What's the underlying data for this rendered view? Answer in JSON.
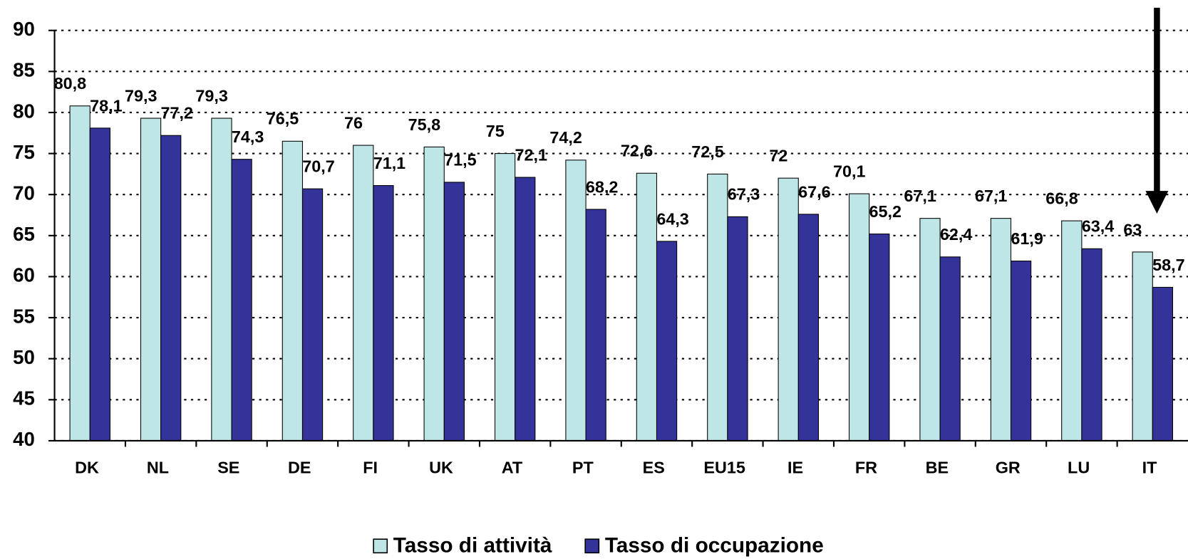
{
  "chart_data": {
    "type": "bar",
    "categories": [
      "DK",
      "NL",
      "SE",
      "DE",
      "FI",
      "UK",
      "AT",
      "PT",
      "ES",
      "EU15",
      "IE",
      "FR",
      "BE",
      "GR",
      "LU",
      "IT"
    ],
    "series": [
      {
        "name": "Tasso di attività",
        "color": "#bfe6e6",
        "values": [
          80.8,
          79.3,
          79.3,
          76.5,
          76,
          75.8,
          75,
          74.2,
          72.6,
          72.5,
          72,
          70.1,
          67.1,
          67.1,
          66.8,
          63
        ],
        "value_labels": [
          "80,8",
          "79,3",
          "79,3",
          "76,5",
          "76",
          "75,8",
          "75",
          "74,2",
          "72,6",
          "72,5",
          "72",
          "70,1",
          "67,1",
          "67,1",
          "66,8",
          "63"
        ]
      },
      {
        "name": "Tasso di occupazione",
        "color": "#333399",
        "values": [
          78.1,
          77.2,
          74.3,
          70.7,
          71.1,
          71.5,
          72.1,
          68.2,
          64.3,
          67.3,
          67.6,
          65.2,
          62.4,
          61.9,
          63.4,
          58.7
        ],
        "value_labels": [
          "78,1",
          "77,2",
          "74,3",
          "70,7",
          "71,1",
          "71,5",
          "72,1",
          "68,2",
          "64,3",
          "67,3",
          "67,6",
          "65,2",
          "62,4",
          "61,9",
          "63,4",
          "58,7"
        ]
      }
    ],
    "ylim": [
      40,
      90
    ],
    "yticks": [
      40,
      45,
      50,
      55,
      60,
      65,
      70,
      75,
      80,
      85,
      90
    ],
    "grid": true,
    "legend": "bottom"
  }
}
